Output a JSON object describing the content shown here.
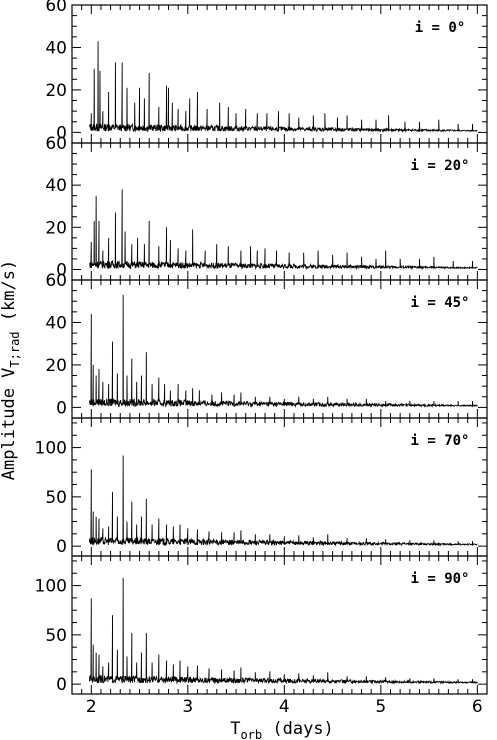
{
  "chart_data": {
    "type": "line",
    "xlabel": "T",
    "xlabel_sub": "orb",
    "xlabel_suffix": " (days)",
    "ylabel": "Amplitude V",
    "ylabel_sub": "T;rad",
    "ylabel_suffix": " (km/s)",
    "xlim": [
      1.8,
      6.1
    ],
    "xticks": [
      "2",
      "3",
      "4",
      "5",
      "6"
    ],
    "panels": [
      {
        "label": "i = 0°",
        "ylim": [
          -5,
          60
        ],
        "yticks": [
          "0",
          "20",
          "40",
          "60"
        ],
        "peaks": [
          [
            2.0,
            9
          ],
          [
            2.03,
            30
          ],
          [
            2.07,
            43
          ],
          [
            2.09,
            29
          ],
          [
            2.12,
            10
          ],
          [
            2.18,
            19
          ],
          [
            2.25,
            33
          ],
          [
            2.32,
            33
          ],
          [
            2.37,
            21
          ],
          [
            2.45,
            14
          ],
          [
            2.5,
            21
          ],
          [
            2.55,
            16
          ],
          [
            2.6,
            28
          ],
          [
            2.7,
            12
          ],
          [
            2.78,
            22
          ],
          [
            2.8,
            21
          ],
          [
            2.84,
            14
          ],
          [
            2.9,
            11
          ],
          [
            2.98,
            10
          ],
          [
            3.02,
            16
          ],
          [
            3.1,
            19
          ],
          [
            3.2,
            11
          ],
          [
            3.33,
            14
          ],
          [
            3.42,
            12
          ],
          [
            3.5,
            9
          ],
          [
            3.6,
            11
          ],
          [
            3.72,
            9
          ],
          [
            3.82,
            9
          ],
          [
            3.94,
            10
          ],
          [
            4.05,
            9
          ],
          [
            4.15,
            7
          ],
          [
            4.3,
            8
          ],
          [
            4.42,
            9
          ],
          [
            4.55,
            7
          ],
          [
            4.65,
            8
          ],
          [
            4.8,
            6
          ],
          [
            4.95,
            6
          ],
          [
            5.08,
            8
          ],
          [
            5.25,
            5
          ],
          [
            5.4,
            5
          ],
          [
            5.6,
            6
          ],
          [
            5.8,
            4
          ],
          [
            5.95,
            4
          ]
        ]
      },
      {
        "label": "i = 20°",
        "ylim": [
          -5,
          60
        ],
        "yticks": [
          "0",
          "20",
          "40",
          "60"
        ],
        "peaks": [
          [
            2.0,
            13
          ],
          [
            2.03,
            23
          ],
          [
            2.05,
            35
          ],
          [
            2.08,
            23
          ],
          [
            2.12,
            9
          ],
          [
            2.18,
            15
          ],
          [
            2.25,
            27
          ],
          [
            2.32,
            38
          ],
          [
            2.35,
            18
          ],
          [
            2.42,
            12
          ],
          [
            2.48,
            15
          ],
          [
            2.55,
            12
          ],
          [
            2.6,
            23
          ],
          [
            2.7,
            11
          ],
          [
            2.78,
            20
          ],
          [
            2.82,
            14
          ],
          [
            2.9,
            10
          ],
          [
            2.98,
            9
          ],
          [
            3.05,
            19
          ],
          [
            3.18,
            9
          ],
          [
            3.3,
            12
          ],
          [
            3.42,
            11
          ],
          [
            3.55,
            9
          ],
          [
            3.65,
            11
          ],
          [
            3.72,
            9
          ],
          [
            3.8,
            10
          ],
          [
            3.92,
            9
          ],
          [
            4.05,
            8
          ],
          [
            4.2,
            8
          ],
          [
            4.35,
            9
          ],
          [
            4.5,
            7
          ],
          [
            4.65,
            8
          ],
          [
            4.8,
            6
          ],
          [
            4.95,
            5
          ],
          [
            5.05,
            9
          ],
          [
            5.2,
            5
          ],
          [
            5.4,
            5
          ],
          [
            5.55,
            6
          ],
          [
            5.75,
            4
          ],
          [
            5.95,
            4
          ]
        ]
      },
      {
        "label": "i = 45°",
        "ylim": [
          -5,
          60
        ],
        "yticks": [
          "0",
          "20",
          "40",
          "60"
        ],
        "peaks": [
          [
            2.0,
            44
          ],
          [
            2.02,
            20
          ],
          [
            2.05,
            15
          ],
          [
            2.08,
            18
          ],
          [
            2.12,
            12
          ],
          [
            2.18,
            11
          ],
          [
            2.22,
            31
          ],
          [
            2.27,
            16
          ],
          [
            2.33,
            53
          ],
          [
            2.37,
            15
          ],
          [
            2.42,
            23
          ],
          [
            2.47,
            12
          ],
          [
            2.52,
            15
          ],
          [
            2.57,
            26
          ],
          [
            2.63,
            11
          ],
          [
            2.7,
            14
          ],
          [
            2.76,
            11
          ],
          [
            2.82,
            8
          ],
          [
            2.9,
            11
          ],
          [
            2.98,
            8
          ],
          [
            3.05,
            9
          ],
          [
            3.12,
            8
          ],
          [
            3.25,
            6
          ],
          [
            3.35,
            7
          ],
          [
            3.48,
            6
          ],
          [
            3.55,
            7
          ],
          [
            3.7,
            5
          ],
          [
            3.85,
            5
          ],
          [
            4.0,
            4
          ],
          [
            4.15,
            5
          ],
          [
            4.3,
            4
          ],
          [
            4.45,
            5
          ],
          [
            4.65,
            4
          ],
          [
            4.85,
            4
          ],
          [
            5.05,
            3
          ],
          [
            5.3,
            3
          ],
          [
            5.55,
            3
          ],
          [
            5.8,
            3
          ],
          [
            5.95,
            3
          ]
        ]
      },
      {
        "label": "i = 70°",
        "ylim": [
          -10,
          130
        ],
        "yticks": [
          "0",
          "50",
          "100"
        ],
        "peaks": [
          [
            2.0,
            78
          ],
          [
            2.02,
            35
          ],
          [
            2.05,
            30
          ],
          [
            2.08,
            28
          ],
          [
            2.12,
            18
          ],
          [
            2.18,
            20
          ],
          [
            2.22,
            55
          ],
          [
            2.27,
            30
          ],
          [
            2.33,
            92
          ],
          [
            2.37,
            25
          ],
          [
            2.42,
            45
          ],
          [
            2.47,
            22
          ],
          [
            2.52,
            30
          ],
          [
            2.57,
            48
          ],
          [
            2.63,
            22
          ],
          [
            2.7,
            28
          ],
          [
            2.78,
            22
          ],
          [
            2.85,
            20
          ],
          [
            2.92,
            22
          ],
          [
            3.0,
            18
          ],
          [
            3.1,
            17
          ],
          [
            3.22,
            15
          ],
          [
            3.35,
            14
          ],
          [
            3.48,
            14
          ],
          [
            3.55,
            16
          ],
          [
            3.7,
            12
          ],
          [
            3.85,
            12
          ],
          [
            4.0,
            10
          ],
          [
            4.15,
            11
          ],
          [
            4.3,
            9
          ],
          [
            4.45,
            12
          ],
          [
            4.65,
            8
          ],
          [
            4.85,
            8
          ],
          [
            5.05,
            7
          ],
          [
            5.3,
            6
          ],
          [
            5.55,
            6
          ],
          [
            5.8,
            5
          ],
          [
            5.95,
            5
          ]
        ]
      },
      {
        "label": "i = 90°",
        "ylim": [
          -10,
          130
        ],
        "yticks": [
          "0",
          "50",
          "100"
        ],
        "peaks": [
          [
            2.0,
            87
          ],
          [
            2.02,
            40
          ],
          [
            2.05,
            32
          ],
          [
            2.08,
            30
          ],
          [
            2.12,
            18
          ],
          [
            2.18,
            22
          ],
          [
            2.22,
            70
          ],
          [
            2.27,
            35
          ],
          [
            2.33,
            108
          ],
          [
            2.37,
            28
          ],
          [
            2.42,
            52
          ],
          [
            2.47,
            22
          ],
          [
            2.52,
            32
          ],
          [
            2.57,
            52
          ],
          [
            2.63,
            22
          ],
          [
            2.7,
            30
          ],
          [
            2.78,
            24
          ],
          [
            2.85,
            20
          ],
          [
            2.92,
            24
          ],
          [
            3.0,
            18
          ],
          [
            3.1,
            19
          ],
          [
            3.22,
            16
          ],
          [
            3.35,
            15
          ],
          [
            3.48,
            14
          ],
          [
            3.55,
            17
          ],
          [
            3.7,
            12
          ],
          [
            3.85,
            13
          ],
          [
            4.0,
            10
          ],
          [
            4.15,
            11
          ],
          [
            4.3,
            9
          ],
          [
            4.45,
            12
          ],
          [
            4.65,
            8
          ],
          [
            4.85,
            8
          ],
          [
            5.05,
            7
          ],
          [
            5.3,
            6
          ],
          [
            5.55,
            6
          ],
          [
            5.8,
            5
          ],
          [
            5.95,
            5
          ]
        ]
      }
    ]
  }
}
